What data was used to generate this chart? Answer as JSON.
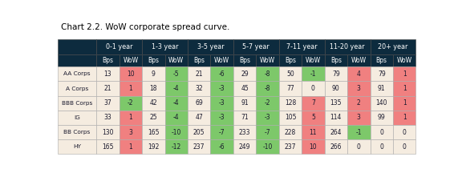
{
  "title": "Chart 2.2. WoW corporate spread curve.",
  "col_groups": [
    "0-1 year",
    "1-3 year",
    "3-5 year",
    "5-7 year",
    "7-11 year",
    "11-20 year",
    "20+ year"
  ],
  "rows": [
    "AA Corps",
    "A Corps",
    "BBB Corps",
    "IG",
    "BB Corps",
    "HY"
  ],
  "data": [
    [
      13,
      10,
      9,
      -5,
      21,
      -6,
      29,
      -8,
      50,
      -1,
      79,
      4,
      79,
      1
    ],
    [
      21,
      1,
      18,
      -4,
      32,
      -3,
      45,
      -8,
      77,
      0,
      90,
      3,
      91,
      1
    ],
    [
      37,
      -2,
      42,
      -4,
      69,
      -3,
      91,
      -2,
      128,
      7,
      135,
      2,
      140,
      1
    ],
    [
      33,
      1,
      25,
      -4,
      47,
      -3,
      71,
      -3,
      105,
      5,
      114,
      3,
      99,
      1
    ],
    [
      130,
      3,
      165,
      -10,
      205,
      -7,
      233,
      -7,
      228,
      11,
      264,
      -1,
      0,
      0
    ],
    [
      165,
      1,
      192,
      -12,
      237,
      -6,
      249,
      -10,
      237,
      10,
      266,
      0,
      0,
      0
    ]
  ],
  "header_bg": "#0d2b3e",
  "header_fg": "#ffffff",
  "row_bg": "#f5ece0",
  "cell_bg_green": "#7dc86a",
  "cell_bg_pink": "#f08080",
  "title_color": "#000000",
  "text_color": "#1a1a2e",
  "title_fontsize": 7.5,
  "header_fontsize": 5.8,
  "subheader_fontsize": 5.5,
  "cell_fontsize": 5.5,
  "rowlabel_fontsize": 5.3
}
